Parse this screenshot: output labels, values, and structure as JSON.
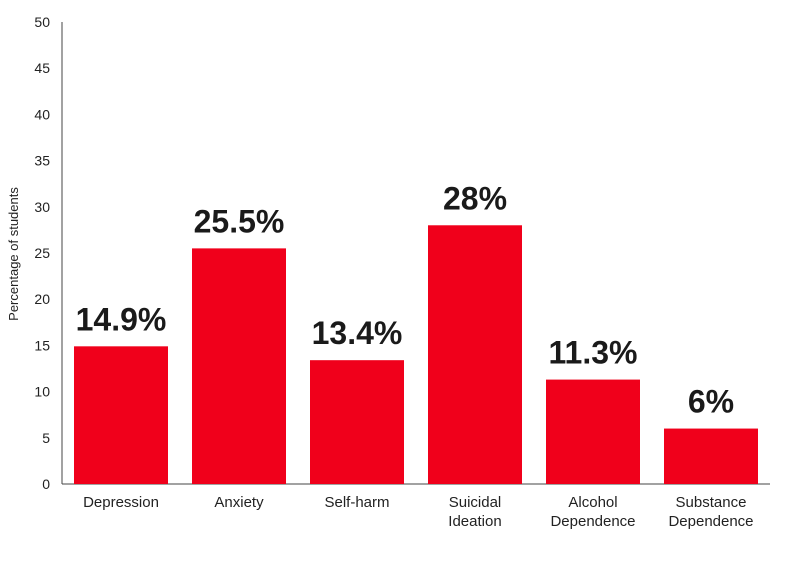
{
  "chart_data": {
    "type": "bar",
    "categories": [
      [
        "Depression"
      ],
      [
        "Anxiety"
      ],
      [
        "Self-harm"
      ],
      [
        "Suicidal",
        "Ideation"
      ],
      [
        "Alcohol",
        "Dependence"
      ],
      [
        "Substance",
        "Dependence"
      ]
    ],
    "values": [
      14.9,
      25.5,
      13.4,
      28,
      11.3,
      6
    ],
    "data_labels": [
      "14.9%",
      "25.5%",
      "13.4%",
      "28%",
      "11.3%",
      "6%"
    ],
    "ylabel": "Percentage of students",
    "ylim": [
      0,
      50
    ],
    "yticks": [
      0,
      5,
      10,
      15,
      20,
      25,
      30,
      35,
      40,
      45,
      50
    ],
    "grid": false,
    "bar_color": "#f0001b"
  }
}
